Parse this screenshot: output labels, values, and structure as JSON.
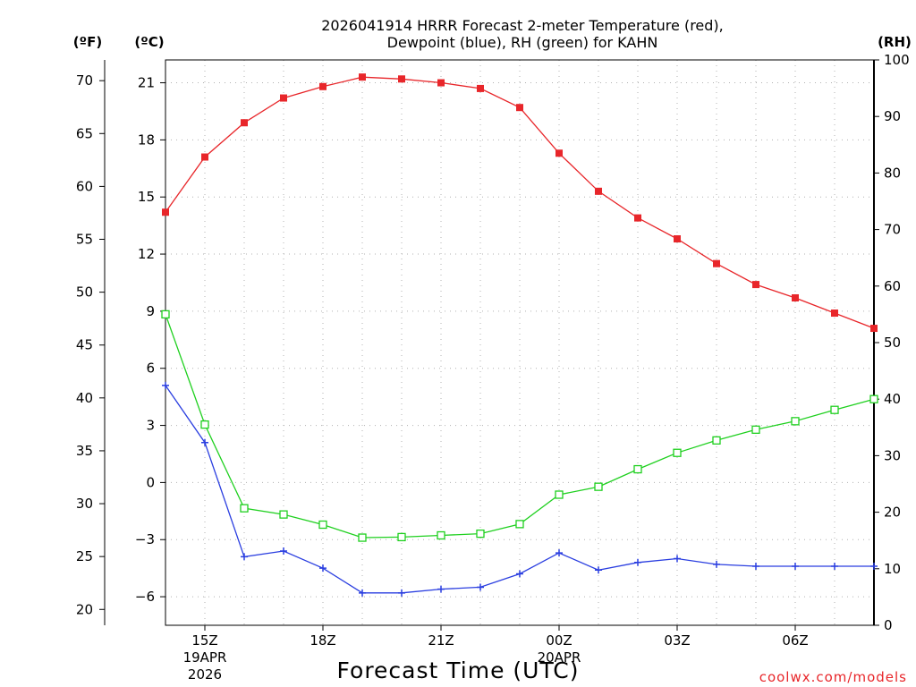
{
  "chart_data": {
    "type": "line",
    "title_line1": "2026041914 HRRR Forecast 2-meter Temperature (red),",
    "title_line2": "Dewpoint (blue), RH (green) for KAHN",
    "xlabel": "Forecast Time (UTC)",
    "credit": "coolwx.com/models",
    "left_f_unit": "(ºF)",
    "left_c_unit": "(ºC)",
    "right_unit": "(RH)",
    "f_ticks": [
      "70",
      "65",
      "60",
      "55",
      "50",
      "45",
      "40",
      "35",
      "30",
      "25",
      "20"
    ],
    "c_ticks": [
      "21",
      "18",
      "15",
      "12",
      "9",
      "6",
      "3",
      "0",
      "−3",
      "−6"
    ],
    "rh_ticks": [
      "100",
      "90",
      "80",
      "70",
      "60",
      "50",
      "40",
      "30",
      "20",
      "10",
      "0"
    ],
    "x_ticks": [
      {
        "hour": 15,
        "label": "15Z",
        "sub1": "19APR",
        "sub2": "2026"
      },
      {
        "hour": 18,
        "label": "18Z",
        "sub1": "",
        "sub2": ""
      },
      {
        "hour": 21,
        "label": "21Z",
        "sub1": "",
        "sub2": ""
      },
      {
        "hour": 24,
        "label": "00Z",
        "sub1": "20APR",
        "sub2": ""
      },
      {
        "hour": 27,
        "label": "03Z",
        "sub1": "",
        "sub2": ""
      },
      {
        "hour": 30,
        "label": "06Z",
        "sub1": "",
        "sub2": ""
      }
    ],
    "x_range_hours": [
      14,
      32
    ],
    "temp_c_range": [
      -7.5,
      22.2
    ],
    "rh_range": [
      0,
      100
    ],
    "hours": [
      14,
      15,
      16,
      17,
      18,
      19,
      20,
      21,
      22,
      23,
      24,
      25,
      26,
      27,
      28,
      29,
      30,
      31,
      32
    ],
    "series": [
      {
        "name": "Temperature",
        "unit": "C",
        "color": "#e8262a",
        "marker": "filled-square",
        "values": [
          14.2,
          17.1,
          18.9,
          20.2,
          20.8,
          21.3,
          21.2,
          21.0,
          20.7,
          19.7,
          17.3,
          15.3,
          13.9,
          12.8,
          11.5,
          10.4,
          9.7,
          8.9,
          8.1
        ]
      },
      {
        "name": "Dewpoint",
        "unit": "C",
        "color": "#2a3ee0",
        "marker": "plus",
        "values": [
          5.1,
          2.1,
          -3.9,
          -3.6,
          -4.5,
          -5.8,
          -5.8,
          -5.6,
          -5.5,
          -4.8,
          -3.7,
          -4.6,
          -4.2,
          -4.0,
          -4.3,
          -4.4,
          -4.4,
          -4.4,
          -4.4
        ]
      },
      {
        "name": "RH",
        "unit": "%",
        "color": "#1fd01f",
        "marker": "open-square",
        "values": [
          55,
          35.5,
          20.7,
          19.6,
          17.8,
          15.5,
          15.6,
          15.9,
          16.2,
          17.9,
          23.1,
          24.5,
          27.6,
          30.5,
          32.7,
          34.6,
          36.1,
          38.1,
          40.0
        ]
      }
    ]
  }
}
